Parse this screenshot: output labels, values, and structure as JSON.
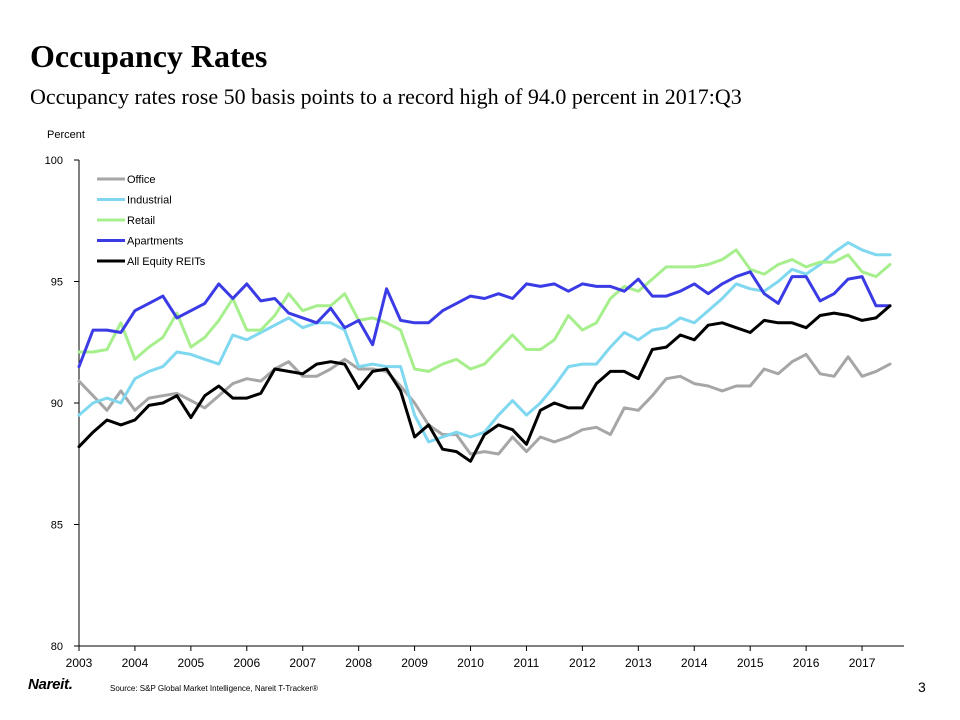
{
  "slide": {
    "title": "Occupancy Rates",
    "subtitle": "Occupancy rates rose 50 basis points to a record high of 94.0 percent in 2017:Q3",
    "source": "Source: S&P Global Market Intelligence, Nareit T-Tracker®",
    "logo_text": "Nareit.",
    "page_number": "3"
  },
  "chart_data": {
    "type": "line",
    "ylabel": "Percent",
    "ylim": [
      80,
      100
    ],
    "yticks": [
      80,
      85,
      90,
      95,
      100
    ],
    "xlim": [
      2003.0,
      2017.75
    ],
    "xtick_labels": [
      "2003",
      "2004",
      "2005",
      "2006",
      "2007",
      "2008",
      "2009",
      "2010",
      "2011",
      "2012",
      "2013",
      "2014",
      "2015",
      "2016",
      "2017"
    ],
    "x_start_year": 2003,
    "points_per_year": 4,
    "legend_position": "top-left",
    "series": [
      {
        "name": "Office",
        "color": "#a6a6a6",
        "values": [
          90.9,
          90.3,
          89.7,
          90.5,
          89.7,
          90.2,
          90.3,
          90.4,
          90.1,
          89.8,
          90.3,
          90.8,
          91.0,
          90.9,
          91.4,
          91.7,
          91.1,
          91.1,
          91.4,
          91.8,
          91.4,
          91.4,
          91.3,
          90.7,
          90.0,
          89.1,
          88.7,
          88.7,
          87.9,
          88.0,
          87.9,
          88.6,
          88.0,
          88.6,
          88.4,
          88.6,
          88.9,
          89.0,
          88.7,
          89.8,
          89.7,
          90.3,
          91.0,
          91.1,
          90.8,
          90.7,
          90.5,
          90.7,
          90.7,
          91.4,
          91.2,
          91.7,
          92.0,
          91.2,
          91.1,
          91.9,
          91.1,
          91.3,
          91.6
        ]
      },
      {
        "name": "Industrial",
        "color": "#7fd8ef",
        "values": [
          89.5,
          90.0,
          90.2,
          90.0,
          91.0,
          91.3,
          91.5,
          92.1,
          92.0,
          91.8,
          91.6,
          92.8,
          92.6,
          92.9,
          93.2,
          93.5,
          93.1,
          93.3,
          93.3,
          93.0,
          91.5,
          91.6,
          91.5,
          91.5,
          89.5,
          88.4,
          88.6,
          88.8,
          88.6,
          88.8,
          89.5,
          90.1,
          89.5,
          90.0,
          90.7,
          91.5,
          91.6,
          91.6,
          92.3,
          92.9,
          92.6,
          93.0,
          93.1,
          93.5,
          93.3,
          93.8,
          94.3,
          94.9,
          94.7,
          94.6,
          95.0,
          95.5,
          95.3,
          95.7,
          96.2,
          96.6,
          96.3,
          96.1,
          96.1
        ]
      },
      {
        "name": "Retail",
        "color": "#a6ef8c",
        "values": [
          92.1,
          92.1,
          92.2,
          93.3,
          91.8,
          92.3,
          92.7,
          93.7,
          92.3,
          92.7,
          93.4,
          94.3,
          93.0,
          93.0,
          93.6,
          94.5,
          93.8,
          94.0,
          94.0,
          94.5,
          93.4,
          93.5,
          93.3,
          93.0,
          91.4,
          91.3,
          91.6,
          91.8,
          91.4,
          91.6,
          92.2,
          92.8,
          92.2,
          92.2,
          92.6,
          93.6,
          93.0,
          93.3,
          94.3,
          94.8,
          94.6,
          95.1,
          95.6,
          95.6,
          95.6,
          95.7,
          95.9,
          96.3,
          95.5,
          95.3,
          95.7,
          95.9,
          95.6,
          95.8,
          95.8,
          96.1,
          95.4,
          95.2,
          95.7
        ]
      },
      {
        "name": "Apartments",
        "color": "#3b3be6",
        "values": [
          91.5,
          93.0,
          93.0,
          92.9,
          93.8,
          94.1,
          94.4,
          93.5,
          93.8,
          94.1,
          94.9,
          94.3,
          94.9,
          94.2,
          94.3,
          93.7,
          93.5,
          93.3,
          93.9,
          93.1,
          93.4,
          92.4,
          94.7,
          93.4,
          93.3,
          93.3,
          93.8,
          94.1,
          94.4,
          94.3,
          94.5,
          94.3,
          94.9,
          94.8,
          94.9,
          94.6,
          94.9,
          94.8,
          94.8,
          94.6,
          95.1,
          94.4,
          94.4,
          94.6,
          94.9,
          94.5,
          94.9,
          95.2,
          95.4,
          94.5,
          94.1,
          95.2,
          95.2,
          94.2,
          94.5,
          95.1,
          95.2,
          94.0,
          94.0
        ]
      },
      {
        "name": "All Equity REITs",
        "color": "#000000",
        "values": [
          88.2,
          88.8,
          89.3,
          89.1,
          89.3,
          89.9,
          90.0,
          90.3,
          89.4,
          90.3,
          90.7,
          90.2,
          90.2,
          90.4,
          91.4,
          91.3,
          91.2,
          91.6,
          91.7,
          91.6,
          90.6,
          91.3,
          91.4,
          90.5,
          88.6,
          89.1,
          88.1,
          88.0,
          87.6,
          88.7,
          89.1,
          88.9,
          88.3,
          89.7,
          90.0,
          89.8,
          89.8,
          90.8,
          91.3,
          91.3,
          91.0,
          92.2,
          92.3,
          92.8,
          92.6,
          93.2,
          93.3,
          93.1,
          92.9,
          93.4,
          93.3,
          93.3,
          93.1,
          93.6,
          93.7,
          93.6,
          93.4,
          93.5,
          94.0
        ]
      }
    ]
  }
}
